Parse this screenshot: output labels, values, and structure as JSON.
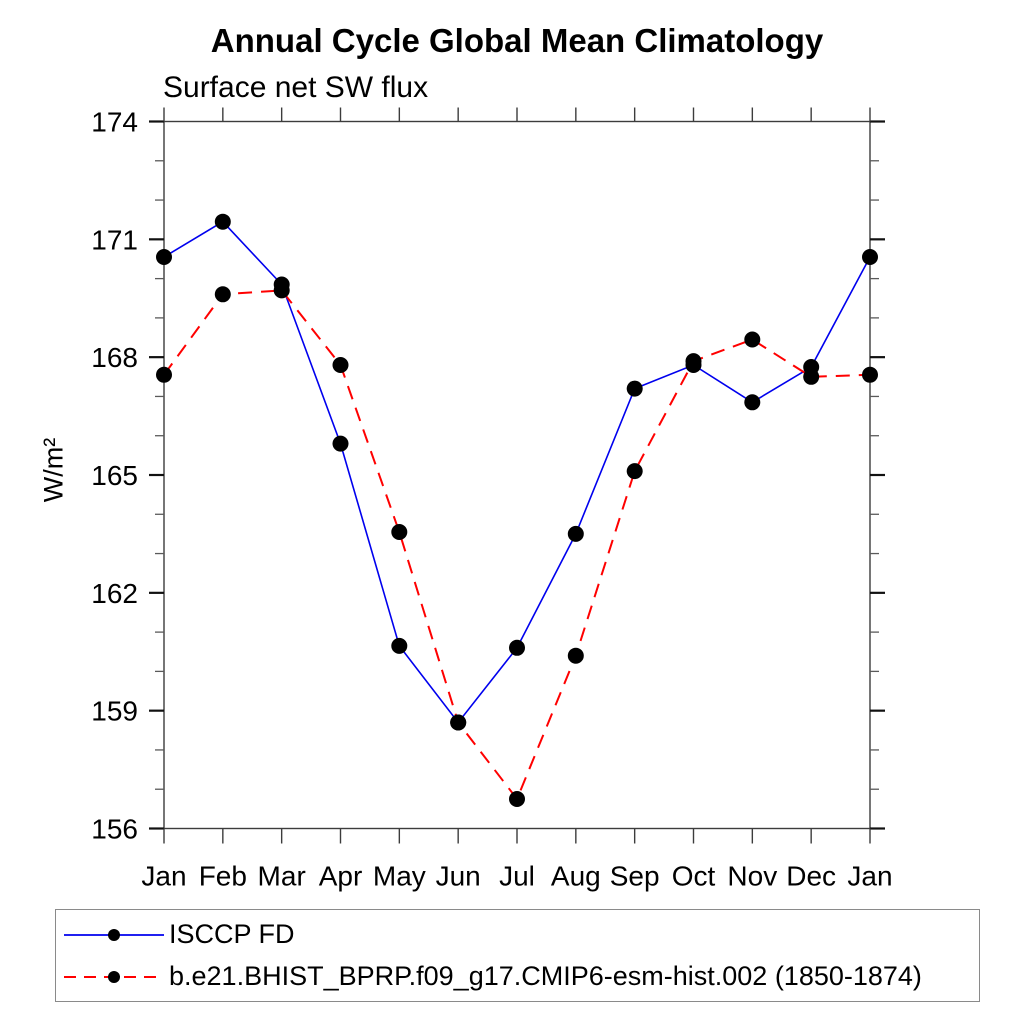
{
  "page": {
    "background": "#ffffff"
  },
  "chart_data": {
    "type": "line",
    "title": "Annual Cycle Global Mean Climatology",
    "subtitle": "Surface net SW flux",
    "ylabel": "W/m²",
    "xlabel": "",
    "categories": [
      "Jan",
      "Feb",
      "Mar",
      "Apr",
      "May",
      "Jun",
      "Jul",
      "Aug",
      "Sep",
      "Oct",
      "Nov",
      "Dec",
      "Jan"
    ],
    "ylim": [
      156,
      174
    ],
    "ytick_major": [
      156,
      159,
      162,
      165,
      168,
      171,
      174
    ],
    "ytick_minor": [
      157,
      158,
      160,
      161,
      163,
      164,
      166,
      167,
      169,
      170,
      172,
      173
    ],
    "grid": false,
    "legend_position": "bottom-left-box",
    "frame_color": "#3c3c3c",
    "marker_shape": "filled-circle",
    "series": [
      {
        "name": "ISCCP FD",
        "color": "#0000ee",
        "style": "solid",
        "marker_color": "#000000",
        "values": [
          170.55,
          171.45,
          169.85,
          165.8,
          160.65,
          158.7,
          160.6,
          163.5,
          167.2,
          167.8,
          166.85,
          167.75,
          170.55
        ]
      },
      {
        "name": "b.e21.BHIST_BPRP.f09_g17.CMIP6-esm-hist.002 (1850-1874)",
        "color": "#ff0000",
        "style": "dashed",
        "marker_color": "#000000",
        "values": [
          167.55,
          169.6,
          169.7,
          167.8,
          163.55,
          158.7,
          156.75,
          160.4,
          165.1,
          167.9,
          168.45,
          167.5,
          167.55
        ]
      }
    ]
  }
}
